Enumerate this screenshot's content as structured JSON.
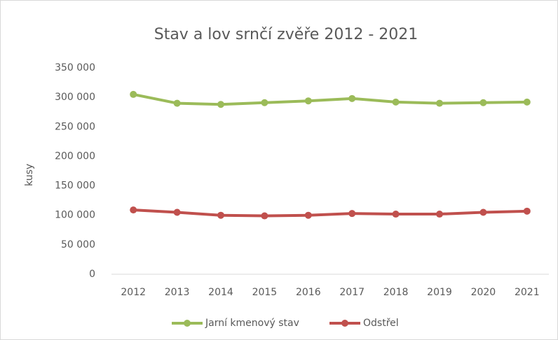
{
  "chart_data": {
    "type": "line",
    "title": "Stav a lov srnčí zvěře 2012 - 2021",
    "y_label": "kusy",
    "categories": [
      "2012",
      "2013",
      "2014",
      "2015",
      "2016",
      "2017",
      "2018",
      "2019",
      "2020",
      "2021"
    ],
    "series": [
      {
        "name": "Jarní kmenový stav",
        "color": "#9bbb59",
        "values": [
          305000,
          290000,
          288000,
          291000,
          294000,
          298000,
          292000,
          290000,
          291000,
          292000
        ]
      },
      {
        "name": "Odstřel",
        "color": "#c0504d",
        "values": [
          109000,
          105000,
          100000,
          99000,
          100000,
          103000,
          102000,
          102000,
          105000,
          107000
        ]
      }
    ],
    "ylim": [
      0,
      350000
    ],
    "yticks": [
      0,
      {
        "value": 50000,
        "label": "50 000"
      },
      {
        "value": 100000,
        "label": "100 000"
      },
      {
        "value": 150000,
        "label": "150 000"
      },
      {
        "value": 200000,
        "label": "200 000"
      },
      {
        "value": 250000,
        "label": "250 000"
      },
      {
        "value": 300000,
        "label": "300 000"
      },
      {
        "value": 350000,
        "label": "350 000"
      }
    ],
    "grid": false,
    "legend": "bottom"
  }
}
